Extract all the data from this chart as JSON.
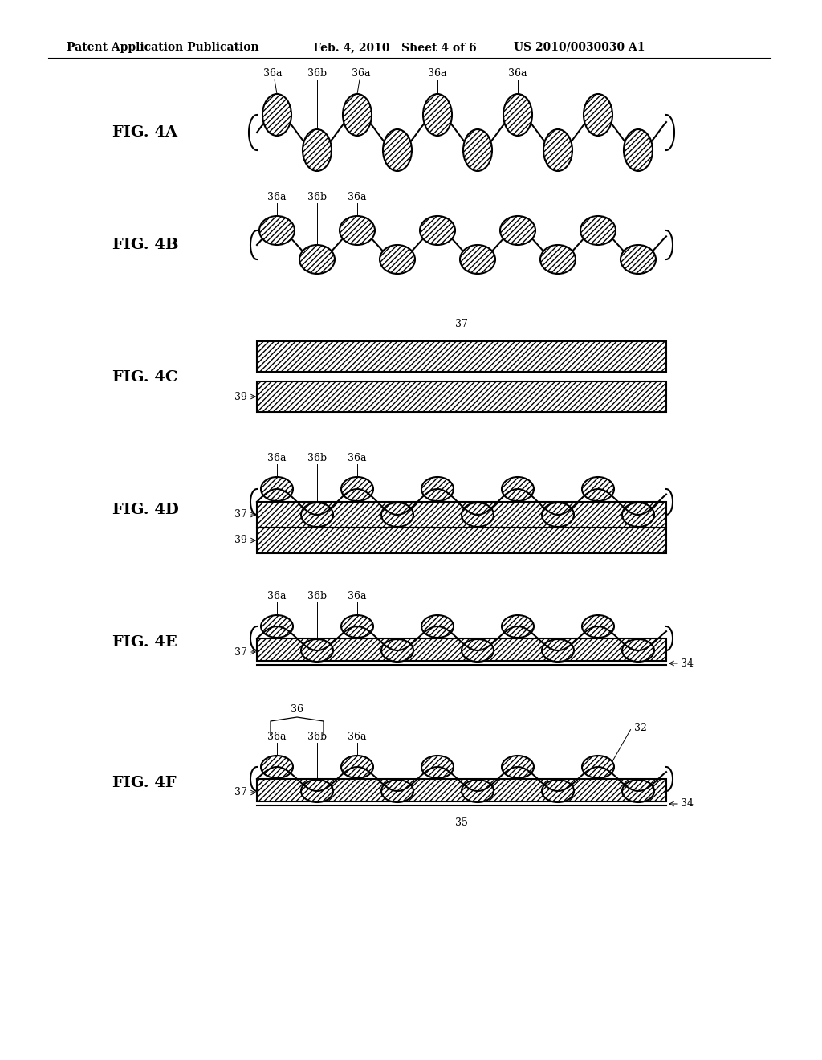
{
  "bg_color": "#ffffff",
  "header_text": "Patent Application Publication",
  "header_date": "Feb. 4, 2010",
  "header_sheet": "Sheet 4 of 6",
  "header_patent": "US 2010/0030030 A1",
  "fig_labels": [
    "FIG. 4A",
    "FIG. 4B",
    "FIG. 4C",
    "FIG. 4D",
    "FIG. 4E",
    "FIG. 4F"
  ],
  "line_color": "#000000",
  "hatch_pattern": "/////"
}
